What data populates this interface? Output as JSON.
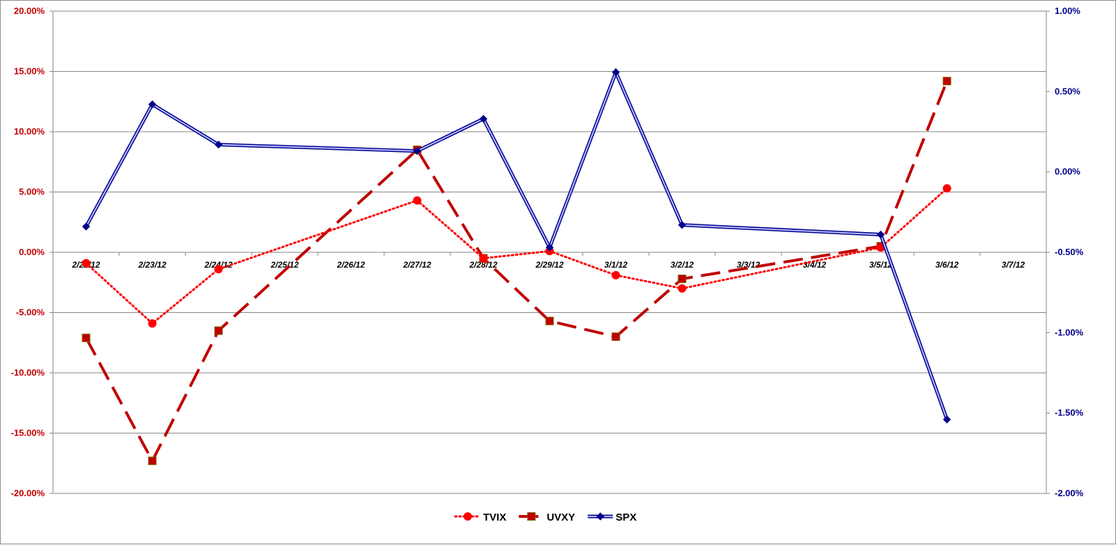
{
  "chart_data": {
    "type": "line",
    "title": "",
    "xlabel": "",
    "ylabel": "",
    "x": [
      "2/22/12",
      "2/23/12",
      "2/24/12",
      "2/25/12",
      "2/26/12",
      "2/27/12",
      "2/28/12",
      "2/29/12",
      "3/1/12",
      "3/2/12",
      "3/3/12",
      "3/4/12",
      "3/5/12",
      "3/6/12",
      "3/7/12"
    ],
    "y_left": {
      "min": -20,
      "max": 20,
      "step": 5,
      "tick_labels": [
        "20.00%",
        "15.00%",
        "10.00%",
        "5.00%",
        "0.00%",
        "-5.00%",
        "-10.00%",
        "-15.00%",
        "-20.00%"
      ],
      "color": "#c00000"
    },
    "y_right": {
      "min": -2.0,
      "max": 1.0,
      "step": 0.5,
      "tick_labels": [
        "1.00%",
        "0.50%",
        "0.00%",
        "-0.50%",
        "-1.00%",
        "-1.50%",
        "-2.00%"
      ],
      "color": "#00008b"
    },
    "grid": true,
    "legend_position": "bottom",
    "series": [
      {
        "name": "TVIX",
        "axis": "left",
        "style": "dotted",
        "marker": "circle",
        "color": "#ff0000",
        "points": [
          [
            0,
            -0.9
          ],
          [
            1,
            -5.9
          ],
          [
            2,
            -1.4
          ],
          [
            5,
            4.3
          ],
          [
            6,
            -0.5
          ],
          [
            7,
            0.1
          ],
          [
            8,
            -1.9
          ],
          [
            9,
            -3.0
          ],
          [
            12,
            0.4
          ],
          [
            13,
            5.3
          ]
        ]
      },
      {
        "name": "UVXY",
        "axis": "left",
        "style": "dashed",
        "marker": "square",
        "color": "#c00000",
        "points": [
          [
            0,
            -7.1
          ],
          [
            1,
            -17.3
          ],
          [
            2,
            -6.5
          ],
          [
            5,
            8.5
          ],
          [
            6,
            -0.5
          ],
          [
            7,
            -5.7
          ],
          [
            8,
            -7.0
          ],
          [
            9,
            -2.2
          ],
          [
            12,
            0.5
          ],
          [
            13,
            14.2
          ]
        ]
      },
      {
        "name": "SPX",
        "axis": "right",
        "style": "double",
        "marker": "diamond",
        "color": "#00008b",
        "points": [
          [
            0,
            -0.34
          ],
          [
            1,
            0.42
          ],
          [
            2,
            0.17
          ],
          [
            5,
            0.13
          ],
          [
            6,
            0.33
          ],
          [
            7,
            -0.47
          ],
          [
            8,
            0.62
          ],
          [
            9,
            -0.33
          ],
          [
            12,
            -0.39
          ],
          [
            13,
            -1.54
          ]
        ]
      }
    ]
  }
}
